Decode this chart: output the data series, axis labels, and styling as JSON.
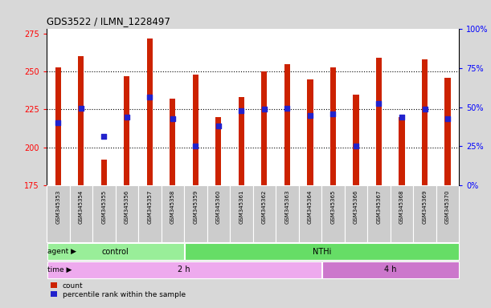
{
  "title": "GDS3522 / ILMN_1228497",
  "samples": [
    "GSM345353",
    "GSM345354",
    "GSM345355",
    "GSM345356",
    "GSM345357",
    "GSM345358",
    "GSM345359",
    "GSM345360",
    "GSM345361",
    "GSM345362",
    "GSM345363",
    "GSM345364",
    "GSM345365",
    "GSM345366",
    "GSM345367",
    "GSM345368",
    "GSM345369",
    "GSM345370"
  ],
  "counts": [
    253,
    260,
    192,
    247,
    272,
    232,
    248,
    220,
    233,
    250,
    255,
    245,
    253,
    235,
    259,
    220,
    258,
    246
  ],
  "percentile_values": [
    216,
    226,
    207,
    220,
    233,
    219,
    201,
    214,
    224,
    225,
    226,
    221,
    222,
    201,
    229,
    220,
    225,
    219
  ],
  "bar_bottom": 175,
  "ylim": [
    175,
    278
  ],
  "yticks_left": [
    175,
    200,
    225,
    250,
    275
  ],
  "right_yticks_pct": [
    0,
    25,
    50,
    75,
    100
  ],
  "bar_color": "#cc2200",
  "dot_color": "#2222cc",
  "bg_color": "#d8d8d8",
  "plot_bg": "#ffffff",
  "agent_groups": [
    {
      "label": "control",
      "start": 0,
      "end": 5,
      "color": "#99ee99"
    },
    {
      "label": "NTHi",
      "start": 6,
      "end": 17,
      "color": "#66dd66"
    }
  ],
  "time_groups": [
    {
      "label": "2 h",
      "start": 0,
      "end": 11,
      "color": "#eeaaee"
    },
    {
      "label": "4 h",
      "start": 12,
      "end": 17,
      "color": "#cc77cc"
    }
  ],
  "legend_items": [
    {
      "label": "count",
      "color": "#cc2200"
    },
    {
      "label": "percentile rank within the sample",
      "color": "#2222cc"
    }
  ],
  "grid_lines": [
    200,
    225,
    250
  ],
  "bar_width": 0.25
}
